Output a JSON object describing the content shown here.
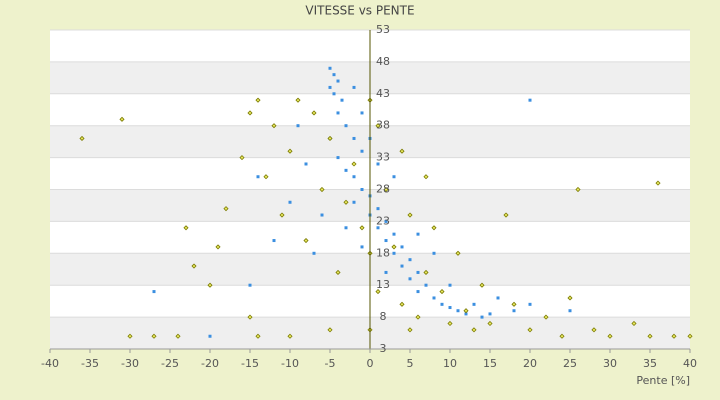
{
  "chart_data": {
    "type": "scatter",
    "title": "VITESSE vs PENTE",
    "x_label": "Pente [%]",
    "xlim": [
      -40,
      40
    ],
    "xticks": [
      -40,
      -35,
      -30,
      -25,
      -20,
      -15,
      -10,
      -5,
      0,
      5,
      10,
      15,
      20,
      25,
      30,
      35,
      40
    ],
    "ylim": [
      3,
      53
    ],
    "yticks": [
      3,
      8,
      13,
      18,
      23,
      28,
      33,
      38,
      43,
      48,
      53
    ],
    "grid": true,
    "series": [
      {
        "color": "#3b8fe0",
        "x": [
          -5,
          -4.5,
          -4,
          -5,
          -4.5,
          -3.5,
          -4,
          -3,
          -2,
          -1,
          -4,
          -3,
          -2,
          -1,
          0,
          -2,
          1,
          0,
          2,
          1,
          3,
          2,
          4,
          3,
          5,
          4,
          6,
          5,
          7,
          6,
          8,
          9,
          10,
          11,
          12,
          14,
          15,
          18,
          20,
          -8,
          -10,
          -12,
          -15,
          -7,
          -6,
          -9,
          -14,
          -20,
          -27,
          20,
          3,
          1,
          -1,
          -2,
          6,
          8,
          10,
          13,
          16,
          -5,
          0,
          -3,
          -1,
          2,
          25
        ],
        "y": [
          47,
          46,
          45,
          44,
          43,
          42,
          40,
          38,
          36,
          34,
          33,
          31,
          30,
          28,
          27,
          26,
          25,
          24,
          23,
          22,
          21,
          20,
          19,
          18,
          17,
          16,
          15,
          14,
          13,
          12,
          11,
          10,
          9.5,
          9,
          8.5,
          8,
          8.5,
          9,
          10,
          32,
          26,
          20,
          13,
          18,
          24,
          38,
          30,
          5,
          12,
          42,
          30,
          32,
          40,
          44,
          21,
          18,
          13,
          10,
          11,
          36,
          36,
          22,
          19,
          15,
          9
        ]
      },
      {
        "color": "#7a7a00",
        "x": [
          -36,
          -31,
          -30,
          -27,
          -24,
          -22,
          -23,
          -20,
          -19,
          -18,
          -16,
          -15,
          -14,
          -13,
          -12,
          -11,
          -10,
          -9,
          -8,
          -7,
          -6,
          -5,
          -4,
          -3,
          -2,
          -1,
          0,
          0,
          1,
          1,
          2,
          3,
          4,
          4,
          5,
          6,
          7,
          7,
          8,
          9,
          10,
          11,
          12,
          13,
          14,
          15,
          17,
          18,
          20,
          22,
          24,
          25,
          26,
          28,
          30,
          33,
          35,
          36,
          38,
          40,
          -14,
          -10,
          -5,
          0,
          5,
          -15
        ],
        "y": [
          36,
          39,
          5,
          5,
          5,
          16,
          22,
          13,
          19,
          25,
          33,
          40,
          42,
          30,
          38,
          24,
          34,
          42,
          20,
          40,
          28,
          36,
          15,
          26,
          32,
          22,
          18,
          42,
          38,
          12,
          28,
          19,
          34,
          10,
          24,
          8,
          30,
          15,
          22,
          12,
          7,
          18,
          9,
          6,
          13,
          7,
          24,
          10,
          6,
          8,
          5,
          11,
          28,
          6,
          5,
          7,
          5,
          29,
          5,
          5,
          5,
          5,
          6,
          6,
          6,
          8
        ]
      }
    ]
  }
}
